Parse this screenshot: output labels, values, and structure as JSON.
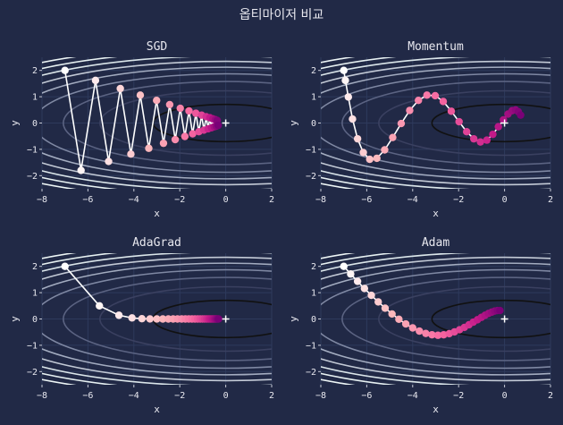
{
  "figure": {
    "suptitle": "옵티마이저 비교",
    "background": "#212946"
  },
  "colors": {
    "axes_bg": "#212946",
    "grid": "#2e3a5c",
    "path_line": "#ffffff",
    "minimum_marker": "#ffffff",
    "contour_levels": [
      "#111111",
      "#3a4060",
      "#5b6382",
      "#7f88a3",
      "#a3acc0",
      "#c3cad6",
      "#dbe6ea",
      "#e7f1f2",
      "#eef6f6"
    ],
    "point_gradient": [
      "#ffffff",
      "#fbb4b9",
      "#f768a1",
      "#c51b8a",
      "#7a0177"
    ]
  },
  "chart_data": [
    {
      "type": "line",
      "title": "SGD",
      "xlabel": "x",
      "ylabel": "y",
      "xlim": [
        -8,
        2
      ],
      "ylim": [
        -2.5,
        2.5
      ],
      "xticks": [
        -8,
        -6,
        -4,
        -2,
        0,
        2
      ],
      "yticks": [
        -2,
        -1,
        0,
        1,
        2
      ],
      "function": "x^2/20 + y^2",
      "minimum": [
        0,
        0
      ],
      "series": [
        {
          "x": [
            -7,
            -6.3,
            -5.67,
            -5.1,
            -4.59,
            -4.13,
            -3.72,
            -3.35,
            -3.01,
            -2.71,
            -2.44,
            -2.2,
            -1.98,
            -1.78,
            -1.6,
            -1.44,
            -1.3,
            -1.17,
            -1.05,
            -0.95,
            -0.85,
            -0.77,
            -0.69,
            -0.62,
            -0.56,
            -0.5,
            -0.45,
            -0.41,
            -0.37,
            -0.33
          ],
          "y": [
            2,
            -1.8,
            1.62,
            -1.46,
            1.31,
            -1.18,
            1.06,
            -0.96,
            0.86,
            -0.77,
            0.7,
            -0.63,
            0.56,
            -0.51,
            0.46,
            -0.41,
            0.37,
            -0.33,
            0.3,
            -0.27,
            0.24,
            -0.22,
            0.2,
            -0.18,
            0.16,
            -0.14,
            0.13,
            -0.12,
            0.1,
            -0.09
          ]
        }
      ]
    },
    {
      "type": "line",
      "title": "Momentum",
      "xlabel": "x",
      "ylabel": "y",
      "xlim": [
        -8,
        2
      ],
      "ylim": [
        -2.5,
        2.5
      ],
      "xticks": [
        -8,
        -6,
        -4,
        -2,
        0,
        2
      ],
      "yticks": [
        -2,
        -1,
        0,
        1,
        2
      ],
      "function": "x^2/20 + y^2",
      "minimum": [
        0,
        0
      ],
      "series": [
        {
          "x": [
            -7,
            -6.93,
            -6.8,
            -6.62,
            -6.4,
            -6.15,
            -5.87,
            -5.56,
            -5.22,
            -4.87,
            -4.5,
            -4.13,
            -3.75,
            -3.38,
            -3.02,
            -2.67,
            -2.32,
            -1.98,
            -1.65,
            -1.34,
            -1.05,
            -0.77,
            -0.51,
            -0.27,
            -0.05,
            0.15,
            0.33,
            0.48,
            0.6,
            0.7
          ],
          "y": [
            2,
            1.62,
            0.99,
            0.15,
            -0.6,
            -1.12,
            -1.38,
            -1.34,
            -1.02,
            -0.55,
            -0.02,
            0.48,
            0.86,
            1.06,
            1.04,
            0.82,
            0.45,
            0.05,
            -0.33,
            -0.6,
            -0.72,
            -0.65,
            -0.43,
            -0.14,
            0.12,
            0.34,
            0.47,
            0.5,
            0.43,
            0.3
          ]
        }
      ]
    },
    {
      "type": "line",
      "title": "AdaGrad",
      "xlabel": "x",
      "ylabel": "y",
      "xlim": [
        -8,
        2
      ],
      "ylim": [
        -2.5,
        2.5
      ],
      "xticks": [
        -8,
        -6,
        -4,
        -2,
        0,
        2
      ],
      "yticks": [
        -2,
        -1,
        0,
        1,
        2
      ],
      "function": "x^2/20 + y^2",
      "minimum": [
        0,
        0
      ],
      "series": [
        {
          "x": [
            -7,
            -5.5,
            -4.65,
            -4.08,
            -3.65,
            -3.3,
            -3.0,
            -2.74,
            -2.5,
            -2.29,
            -2.1,
            -1.92,
            -1.76,
            -1.61,
            -1.47,
            -1.34,
            -1.22,
            -1.11,
            -1.01,
            -0.92,
            -0.83,
            -0.75,
            -0.68,
            -0.61,
            -0.55,
            -0.49,
            -0.44,
            -0.39,
            -0.35,
            -0.31
          ],
          "y": [
            2,
            0.5,
            0.14,
            0.04,
            0.01,
            0.003,
            0.001,
            0,
            0,
            0,
            0,
            0,
            0,
            0,
            0,
            0,
            0,
            0,
            0,
            0,
            0,
            0,
            0,
            0,
            0,
            0,
            0,
            0,
            0,
            0
          ]
        }
      ]
    },
    {
      "type": "line",
      "title": "Adam",
      "xlabel": "x",
      "ylabel": "y",
      "xlim": [
        -8,
        2
      ],
      "ylim": [
        -2.5,
        2.5
      ],
      "xticks": [
        -8,
        -6,
        -4,
        -2,
        0,
        2
      ],
      "yticks": [
        -2,
        -1,
        0,
        1,
        2
      ],
      "function": "x^2/20 + y^2",
      "minimum": [
        0,
        0
      ],
      "series": [
        {
          "x": [
            -7,
            -6.7,
            -6.4,
            -6.1,
            -5.8,
            -5.5,
            -5.2,
            -4.9,
            -4.6,
            -4.3,
            -4.0,
            -3.71,
            -3.43,
            -3.16,
            -2.9,
            -2.65,
            -2.41,
            -2.18,
            -1.96,
            -1.75,
            -1.55,
            -1.36,
            -1.18,
            -1.01,
            -0.85,
            -0.7,
            -0.56,
            -0.43,
            -0.31,
            -0.2
          ],
          "y": [
            2,
            1.71,
            1.43,
            1.16,
            0.9,
            0.65,
            0.41,
            0.19,
            -0.01,
            -0.19,
            -0.34,
            -0.46,
            -0.55,
            -0.6,
            -0.62,
            -0.6,
            -0.56,
            -0.49,
            -0.41,
            -0.32,
            -0.22,
            -0.12,
            -0.03,
            0.06,
            0.14,
            0.21,
            0.26,
            0.3,
            0.32,
            0.32
          ]
        }
      ]
    }
  ]
}
